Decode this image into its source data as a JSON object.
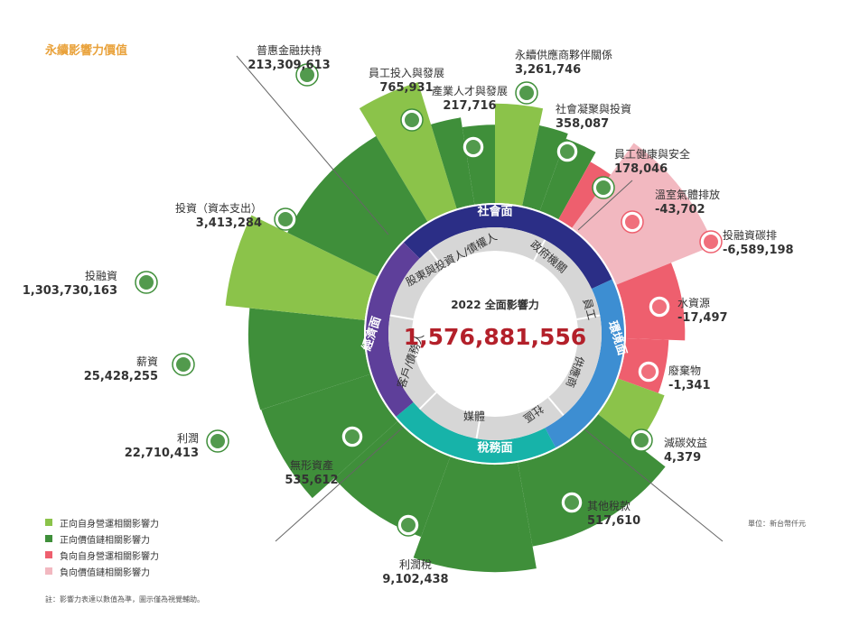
{
  "header": {
    "title": "永續影響力價值"
  },
  "legend": [
    {
      "label": "正向自身營運相關影響力",
      "color": "#8bc34a"
    },
    {
      "label": "正向價值鏈相關影響力",
      "color": "#3f8f3a"
    },
    {
      "label": "負向自身營運相關影響力",
      "color": "#ee5f6e"
    },
    {
      "label": "負向價值鏈相關影響力",
      "color": "#f2b8c0"
    }
  ],
  "footer": {
    "note": "註：影響力表達以數值為準，圖示僅為視覺輔助。",
    "unit": "單位：新台幣仟元"
  },
  "chart_data": {
    "type": "sunburst",
    "center_title": "2022 全面影響力",
    "center_value": "1,576,881,556",
    "center_value_color": "#b3202a",
    "outer_ring": [
      {
        "label": "社會面",
        "color": "#2b2e86"
      },
      {
        "label": "環境面",
        "color": "#3d8ed2"
      },
      {
        "label": "稅務面",
        "color": "#17b3a9"
      },
      {
        "label": "經濟面",
        "color": "#5e3f9a"
      }
    ],
    "inner_ring": [
      "股東與投資人/債權人",
      "政府機關",
      "員工",
      "供應商",
      "社區",
      "媒體",
      "客戶/債務人"
    ],
    "petals": [
      {
        "name": "普惠金融扶持",
        "value": "213,309,613",
        "kind": "pos_own",
        "icon": "dollar-icon"
      },
      {
        "name": "員工投入與發展",
        "value": "765,931",
        "kind": "pos_chain",
        "icon": "presentation-icon"
      },
      {
        "name": "產業人才與發展",
        "value": "217,716",
        "kind": "pos_chain",
        "icon": "graduation-icon"
      },
      {
        "name": "永續供應商夥伴關係",
        "value": "3,261,746",
        "kind": "pos_own",
        "icon": "handshake-icon"
      },
      {
        "name": "社會凝聚與投資",
        "value": "358,087",
        "kind": "pos_chain",
        "icon": "growth-icon"
      },
      {
        "name": "員工健康與安全",
        "value": "178,046",
        "kind": "pos_chain",
        "icon": "health-icon"
      },
      {
        "name": "溫室氣體排放",
        "value": "-43,702",
        "kind": "neg_own",
        "icon": "factory-icon"
      },
      {
        "name": "投融資碳排",
        "value": "-6,589,198",
        "kind": "neg_chain",
        "icon": "carbon-cycle-icon"
      },
      {
        "name": "水資源",
        "value": "-17,497",
        "kind": "neg_own",
        "icon": "water-drop-icon"
      },
      {
        "name": "廢棄物",
        "value": "-1,341",
        "kind": "neg_own",
        "icon": "trash-icon"
      },
      {
        "name": "減碳效益",
        "value": "4,379",
        "kind": "pos_own",
        "icon": "chart-icon"
      },
      {
        "name": "其他稅款",
        "value": "517,610",
        "kind": "pos_chain",
        "icon": "calculator-icon"
      },
      {
        "name": "利潤稅",
        "value": "9,102,438",
        "kind": "pos_chain",
        "icon": "calculator-icon"
      },
      {
        "name": "無形資產",
        "value": "535,612",
        "kind": "pos_chain",
        "icon": "lightbulb-icon"
      },
      {
        "name": "利潤",
        "value": "22,710,413",
        "kind": "pos_chain",
        "icon": "money-icon"
      },
      {
        "name": "薪資",
        "value": "25,428,255",
        "kind": "pos_chain",
        "icon": "people-icon"
      },
      {
        "name": "投融資",
        "value": "1,303,730,163",
        "kind": "pos_own",
        "icon": "coin-icon"
      },
      {
        "name": "投資（資本支出）",
        "value": "3,413,284",
        "kind": "pos_chain",
        "icon": "building-icon"
      }
    ],
    "colors": {
      "pos_own": "#8bc34a",
      "pos_chain": "#3f8f3a",
      "neg_own": "#ee5f6e",
      "neg_chain": "#f2b8c0"
    }
  }
}
